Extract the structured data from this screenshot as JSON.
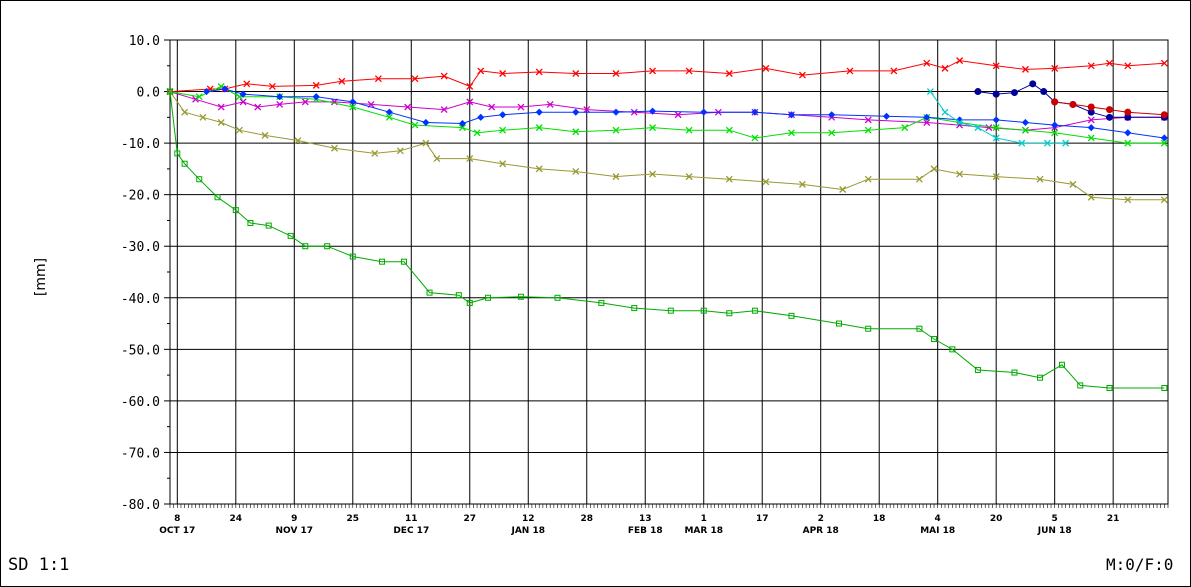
{
  "footer_left": "SD 1:1",
  "footer_right": "M:0/F:0",
  "chart_data": {
    "type": "line",
    "ylabel": "[mm]",
    "ylim": [
      -80,
      10
    ],
    "yticks": [
      10,
      0,
      -10,
      -20,
      -30,
      -40,
      -50,
      -60,
      -70,
      -80
    ],
    "ytick_labels": [
      "10.0",
      "0.0",
      "-10.0",
      "-20.0",
      "-30.0",
      "-40.0",
      "-50.0",
      "-60.0",
      "-70.0",
      "-80.0"
    ],
    "xlim": [
      "2017-10-06",
      "2018-07-06"
    ],
    "x_ticks": [
      {
        "date": "2017-10-08",
        "label": "8",
        "month": "OCT 17"
      },
      {
        "date": "2017-10-24",
        "label": "24"
      },
      {
        "date": "2017-11-09",
        "label": "9",
        "month": "NOV 17"
      },
      {
        "date": "2017-11-25",
        "label": "25"
      },
      {
        "date": "2017-12-11",
        "label": "11",
        "month": "DEC 17"
      },
      {
        "date": "2017-12-27",
        "label": "27"
      },
      {
        "date": "2018-01-12",
        "label": "12",
        "month": "JAN 18"
      },
      {
        "date": "2018-01-28",
        "label": "28"
      },
      {
        "date": "2018-02-13",
        "label": "13",
        "month": "FEB 18"
      },
      {
        "date": "2018-03-01",
        "label": "1",
        "month": "MAR 18"
      },
      {
        "date": "2018-03-17",
        "label": "17"
      },
      {
        "date": "2018-04-02",
        "label": "2",
        "month": "APR 18"
      },
      {
        "date": "2018-04-18",
        "label": "18"
      },
      {
        "date": "2018-05-04",
        "label": "4",
        "month": "MAI 18"
      },
      {
        "date": "2018-05-20",
        "label": "20"
      },
      {
        "date": "2018-06-05",
        "label": "5",
        "month": "JUN 18"
      },
      {
        "date": "2018-06-21",
        "label": "21"
      }
    ],
    "grid": true,
    "series": [
      {
        "color": "#ff0000",
        "marker": "x",
        "points": [
          [
            "2017-10-06",
            0
          ],
          [
            "2017-10-17",
            0.5
          ],
          [
            "2017-10-21",
            0.5
          ],
          [
            "2017-10-27",
            1.5
          ],
          [
            "2017-11-03",
            1
          ],
          [
            "2017-11-15",
            1.2
          ],
          [
            "2017-11-22",
            2
          ],
          [
            "2017-12-02",
            2.5
          ],
          [
            "2017-12-12",
            2.5
          ],
          [
            "2017-12-20",
            3
          ],
          [
            "2017-12-27",
            1
          ],
          [
            "2017-12-30",
            4
          ],
          [
            "2018-01-05",
            3.5
          ],
          [
            "2018-01-15",
            3.8
          ],
          [
            "2018-01-25",
            3.5
          ],
          [
            "2018-02-05",
            3.5
          ],
          [
            "2018-02-15",
            4
          ],
          [
            "2018-02-25",
            4
          ],
          [
            "2018-03-08",
            3.5
          ],
          [
            "2018-03-18",
            4.5
          ],
          [
            "2018-03-28",
            3.2
          ],
          [
            "2018-04-10",
            4
          ],
          [
            "2018-04-22",
            4
          ],
          [
            "2018-05-01",
            5.5
          ],
          [
            "2018-05-06",
            4.5
          ],
          [
            "2018-05-10",
            6
          ],
          [
            "2018-05-20",
            5
          ],
          [
            "2018-05-28",
            4.3
          ],
          [
            "2018-06-05",
            4.5
          ],
          [
            "2018-06-15",
            5
          ],
          [
            "2018-06-20",
            5.5
          ],
          [
            "2018-06-25",
            5
          ],
          [
            "2018-07-05",
            5.5
          ]
        ]
      },
      {
        "color": "#cc00cc",
        "marker": "x",
        "points": [
          [
            "2017-10-06",
            0
          ],
          [
            "2017-10-13",
            -1.5
          ],
          [
            "2017-10-20",
            -3
          ],
          [
            "2017-10-26",
            -2
          ],
          [
            "2017-10-30",
            -3
          ],
          [
            "2017-11-05",
            -2.5
          ],
          [
            "2017-11-12",
            -2
          ],
          [
            "2017-11-20",
            -2
          ],
          [
            "2017-11-30",
            -2.5
          ],
          [
            "2017-12-10",
            -3
          ],
          [
            "2017-12-20",
            -3.5
          ],
          [
            "2017-12-27",
            -2
          ],
          [
            "2018-01-02",
            -3
          ],
          [
            "2018-01-10",
            -3
          ],
          [
            "2018-01-18",
            -2.5
          ],
          [
            "2018-01-28",
            -3.5
          ],
          [
            "2018-02-10",
            -4
          ],
          [
            "2018-02-22",
            -4.5
          ],
          [
            "2018-03-05",
            -4
          ],
          [
            "2018-03-15",
            -4
          ],
          [
            "2018-03-25",
            -4.5
          ],
          [
            "2018-04-05",
            -5
          ],
          [
            "2018-04-15",
            -5.5
          ],
          [
            "2018-05-01",
            -6
          ],
          [
            "2018-05-10",
            -6.5
          ],
          [
            "2018-05-18",
            -7
          ],
          [
            "2018-05-28",
            -7.5
          ],
          [
            "2018-06-05",
            -7
          ],
          [
            "2018-06-15",
            -5.5
          ],
          [
            "2018-06-25",
            -5
          ],
          [
            "2018-07-05",
            -5
          ]
        ]
      },
      {
        "color": "#00e000",
        "marker": "x",
        "points": [
          [
            "2017-10-06",
            0
          ],
          [
            "2017-10-14",
            -1
          ],
          [
            "2017-10-20",
            1
          ],
          [
            "2017-10-25",
            -1
          ],
          [
            "2017-11-05",
            -1
          ],
          [
            "2017-11-15",
            -1.5
          ],
          [
            "2017-11-25",
            -3
          ],
          [
            "2017-12-05",
            -5
          ],
          [
            "2017-12-12",
            -6.5
          ],
          [
            "2017-12-25",
            -7
          ],
          [
            "2017-12-29",
            -8
          ],
          [
            "2018-01-05",
            -7.5
          ],
          [
            "2018-01-15",
            -7
          ],
          [
            "2018-01-25",
            -7.8
          ],
          [
            "2018-02-05",
            -7.5
          ],
          [
            "2018-02-15",
            -7
          ],
          [
            "2018-02-25",
            -7.5
          ],
          [
            "2018-03-08",
            -7.5
          ],
          [
            "2018-03-15",
            -9
          ],
          [
            "2018-03-25",
            -8
          ],
          [
            "2018-04-05",
            -8
          ],
          [
            "2018-04-15",
            -7.5
          ],
          [
            "2018-04-25",
            -7
          ],
          [
            "2018-05-01",
            -5
          ],
          [
            "2018-05-10",
            -6
          ],
          [
            "2018-05-20",
            -7
          ],
          [
            "2018-05-28",
            -7.5
          ],
          [
            "2018-06-05",
            -8
          ],
          [
            "2018-06-15",
            -9
          ],
          [
            "2018-06-25",
            -10
          ],
          [
            "2018-07-05",
            -10
          ]
        ]
      },
      {
        "color": "#0033ff",
        "marker": "diamond",
        "points": [
          [
            "2017-10-16",
            0
          ],
          [
            "2017-10-21",
            0.5
          ],
          [
            "2017-10-26",
            -0.5
          ],
          [
            "2017-11-05",
            -1
          ],
          [
            "2017-11-15",
            -1
          ],
          [
            "2017-11-25",
            -2
          ],
          [
            "2017-12-05",
            -4
          ],
          [
            "2017-12-15",
            -6
          ],
          [
            "2017-12-25",
            -6.2
          ],
          [
            "2017-12-30",
            -5
          ],
          [
            "2018-01-05",
            -4.5
          ],
          [
            "2018-01-15",
            -4
          ],
          [
            "2018-01-25",
            -4
          ],
          [
            "2018-02-05",
            -4
          ],
          [
            "2018-02-15",
            -3.8
          ],
          [
            "2018-03-01",
            -4
          ],
          [
            "2018-03-15",
            -4
          ],
          [
            "2018-03-25",
            -4.5
          ],
          [
            "2018-04-05",
            -4.5
          ],
          [
            "2018-04-20",
            -4.8
          ],
          [
            "2018-05-01",
            -5
          ],
          [
            "2018-05-10",
            -5.5
          ],
          [
            "2018-05-20",
            -5.5
          ],
          [
            "2018-05-28",
            -6
          ],
          [
            "2018-06-05",
            -6.5
          ],
          [
            "2018-06-15",
            -7
          ],
          [
            "2018-06-25",
            -8
          ],
          [
            "2018-07-05",
            -9
          ]
        ]
      },
      {
        "color": "#00cccc",
        "marker": "x",
        "points": [
          [
            "2018-05-02",
            0
          ],
          [
            "2018-05-06",
            -4
          ],
          [
            "2018-05-10",
            -6
          ],
          [
            "2018-05-15",
            -7
          ],
          [
            "2018-05-20",
            -9
          ],
          [
            "2018-05-27",
            -10
          ],
          [
            "2018-06-03",
            -10
          ],
          [
            "2018-06-08",
            -10
          ]
        ]
      },
      {
        "color": "#000099",
        "marker": "circle",
        "points": [
          [
            "2018-05-15",
            0
          ],
          [
            "2018-05-20",
            -0.5
          ],
          [
            "2018-05-25",
            -0.2
          ],
          [
            "2018-05-30",
            1.5
          ],
          [
            "2018-06-02",
            0
          ],
          [
            "2018-06-05",
            -2
          ],
          [
            "2018-06-10",
            -2.5
          ],
          [
            "2018-06-15",
            -4
          ],
          [
            "2018-06-20",
            -5
          ],
          [
            "2018-06-25",
            -5
          ],
          [
            "2018-07-05",
            -5
          ]
        ]
      },
      {
        "color": "#cc0000",
        "marker": "circle",
        "points": [
          [
            "2018-06-05",
            -2
          ],
          [
            "2018-06-10",
            -2.5
          ],
          [
            "2018-06-15",
            -3
          ],
          [
            "2018-06-20",
            -3.5
          ],
          [
            "2018-06-25",
            -4
          ],
          [
            "2018-07-05",
            -4.5
          ]
        ]
      },
      {
        "color": "#999933",
        "marker": "x",
        "points": [
          [
            "2017-10-06",
            0
          ],
          [
            "2017-10-10",
            -4
          ],
          [
            "2017-10-15",
            -5
          ],
          [
            "2017-10-20",
            -6
          ],
          [
            "2017-10-25",
            -7.5
          ],
          [
            "2017-11-01",
            -8.5
          ],
          [
            "2017-11-10",
            -9.5
          ],
          [
            "2017-11-20",
            -11
          ],
          [
            "2017-12-01",
            -12
          ],
          [
            "2017-12-08",
            -11.5
          ],
          [
            "2017-12-15",
            -10
          ],
          [
            "2017-12-18",
            -13
          ],
          [
            "2017-12-27",
            -13
          ],
          [
            "2018-01-05",
            -14
          ],
          [
            "2018-01-15",
            -15
          ],
          [
            "2018-01-25",
            -15.5
          ],
          [
            "2018-02-05",
            -16.5
          ],
          [
            "2018-02-15",
            -16
          ],
          [
            "2018-02-25",
            -16.5
          ],
          [
            "2018-03-08",
            -17
          ],
          [
            "2018-03-18",
            -17.5
          ],
          [
            "2018-03-28",
            -18
          ],
          [
            "2018-04-08",
            -19
          ],
          [
            "2018-04-15",
            -17
          ],
          [
            "2018-04-29",
            -17
          ],
          [
            "2018-05-03",
            -15
          ],
          [
            "2018-05-10",
            -16
          ],
          [
            "2018-05-20",
            -16.5
          ],
          [
            "2018-06-01",
            -17
          ],
          [
            "2018-06-10",
            -18
          ],
          [
            "2018-06-15",
            -20.5
          ],
          [
            "2018-06-25",
            -21
          ],
          [
            "2018-07-05",
            -21
          ]
        ]
      },
      {
        "color": "#00aa00",
        "marker": "square",
        "points": [
          [
            "2017-10-06",
            0
          ],
          [
            "2017-10-08",
            -12
          ],
          [
            "2017-10-10",
            -14
          ],
          [
            "2017-10-14",
            -17
          ],
          [
            "2017-10-19",
            -20.5
          ],
          [
            "2017-10-24",
            -23
          ],
          [
            "2017-10-28",
            -25.5
          ],
          [
            "2017-11-02",
            -26
          ],
          [
            "2017-11-08",
            -28
          ],
          [
            "2017-11-12",
            -30
          ],
          [
            "2017-11-18",
            -30
          ],
          [
            "2017-11-25",
            -32
          ],
          [
            "2017-12-03",
            -33
          ],
          [
            "2017-12-09",
            -33
          ],
          [
            "2017-12-16",
            -39
          ],
          [
            "2017-12-24",
            -39.5
          ],
          [
            "2017-12-27",
            -41
          ],
          [
            "2018-01-01",
            -40
          ],
          [
            "2018-01-10",
            -39.8
          ],
          [
            "2018-01-20",
            -40
          ],
          [
            "2018-02-01",
            -41
          ],
          [
            "2018-02-10",
            -42
          ],
          [
            "2018-02-20",
            -42.5
          ],
          [
            "2018-03-01",
            -42.5
          ],
          [
            "2018-03-08",
            -43
          ],
          [
            "2018-03-15",
            -42.5
          ],
          [
            "2018-03-25",
            -43.5
          ],
          [
            "2018-04-07",
            -45
          ],
          [
            "2018-04-15",
            -46
          ],
          [
            "2018-04-29",
            -46
          ],
          [
            "2018-05-03",
            -48
          ],
          [
            "2018-05-08",
            -50
          ],
          [
            "2018-05-15",
            -54
          ],
          [
            "2018-05-25",
            -54.5
          ],
          [
            "2018-06-01",
            -55.5
          ],
          [
            "2018-06-07",
            -53
          ],
          [
            "2018-06-12",
            -57
          ],
          [
            "2018-06-20",
            -57.5
          ],
          [
            "2018-07-05",
            -57.5
          ]
        ]
      }
    ]
  }
}
